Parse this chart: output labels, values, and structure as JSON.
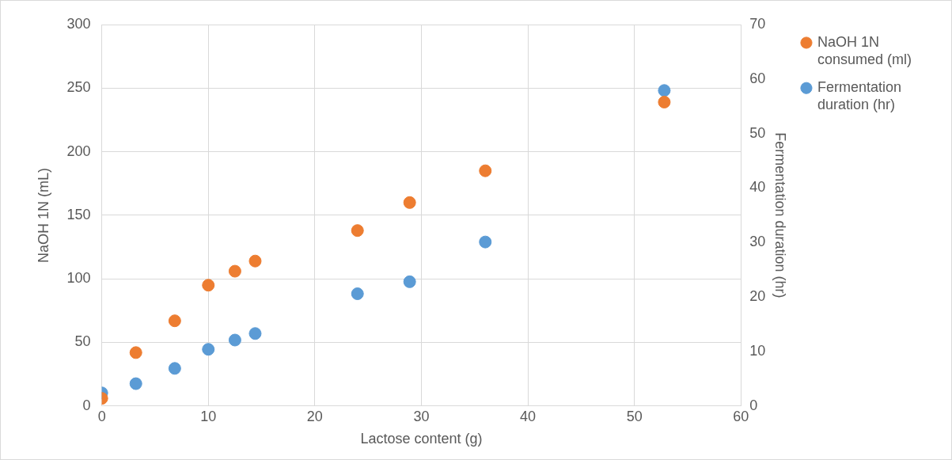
{
  "chart_data": {
    "type": "scatter",
    "xlabel": "Lactose content (g)",
    "ylabel": "NaOH 1N (mL)",
    "y2label": "Fermentation duration (hr)",
    "xlim": [
      0,
      60
    ],
    "xticks": [
      0,
      10,
      20,
      30,
      40,
      50,
      60
    ],
    "ylim": [
      0,
      300
    ],
    "yticks": [
      0,
      50,
      100,
      150,
      200,
      250,
      300
    ],
    "y2lim": [
      0,
      70
    ],
    "y2ticks": [
      0,
      10,
      20,
      30,
      40,
      50,
      60,
      70
    ],
    "grid": true,
    "legend": "right",
    "marker": "circle",
    "series": [
      {
        "name": "NaOH 1N consumed (ml)",
        "color": "#ed7d31",
        "x": [
          0,
          3.2,
          6.85,
          10,
          12.5,
          14.4,
          24,
          28.9,
          36,
          52.8
        ],
        "values": [
          6,
          42,
          67,
          95,
          106,
          114,
          138,
          160,
          185,
          239
        ]
      },
      {
        "name": "Fermentation duration (hr)",
        "color": "#5b9bd5",
        "axis": "y2",
        "x": [
          0,
          3.2,
          6.85,
          10,
          12.5,
          14.4,
          24,
          28.9,
          36,
          52.8
        ],
        "values": [
          2.4,
          4.1,
          6.9,
          10.4,
          12.1,
          13.3,
          20.6,
          22.8,
          30.1,
          57.9
        ]
      }
    ]
  }
}
